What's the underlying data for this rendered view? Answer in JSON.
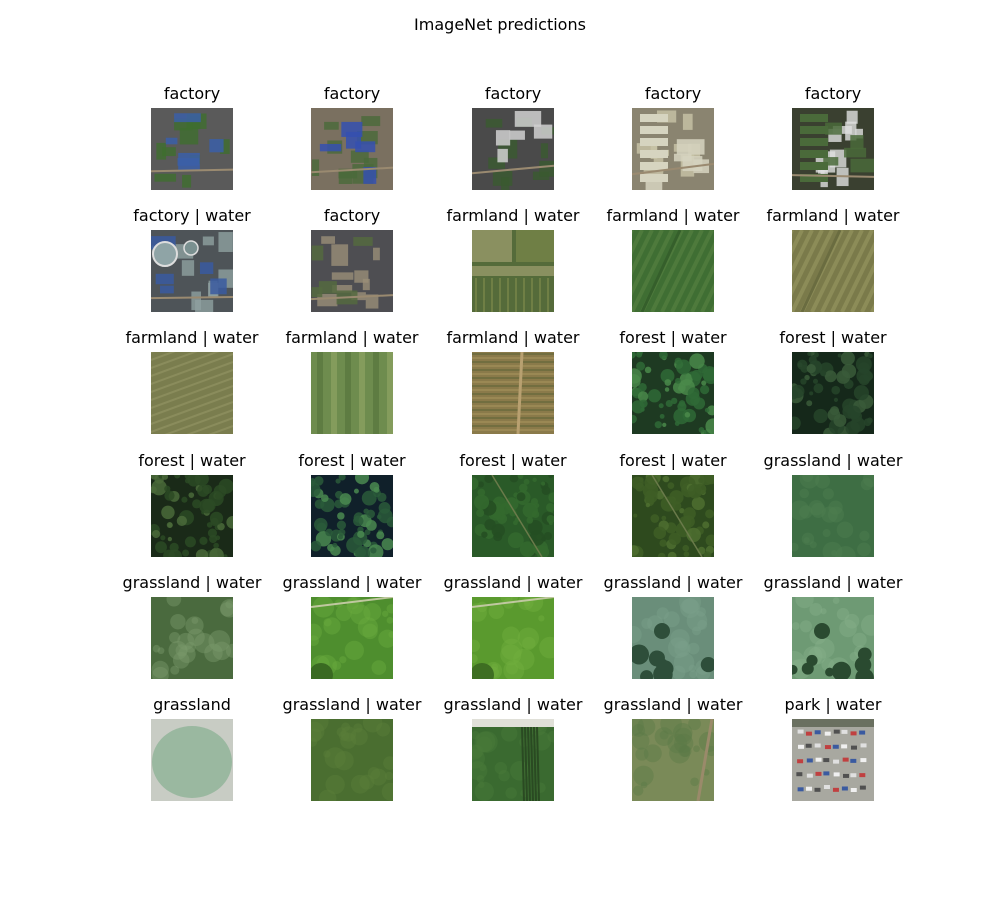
{
  "figure": {
    "title": "ImageNet predictions"
  },
  "images": [
    {
      "label": "factory",
      "kind": "factory-a",
      "colors": [
        "#5a5a5a",
        "#3e6e2e",
        "#3b5fa8"
      ]
    },
    {
      "label": "factory",
      "kind": "factory-b",
      "colors": [
        "#7a7060",
        "#4a6a3a",
        "#3550b0"
      ]
    },
    {
      "label": "factory",
      "kind": "factory-c",
      "colors": [
        "#4a4a4a",
        "#3a5a30",
        "#d0d0d0"
      ]
    },
    {
      "label": "factory",
      "kind": "factory-d",
      "colors": [
        "#8a8470",
        "#c8c4a8",
        "#d6d4c0"
      ]
    },
    {
      "label": "factory",
      "kind": "factory-e",
      "colors": [
        "#3a4030",
        "#e0e0e0",
        "#4a6a3a"
      ]
    },
    {
      "label": "factory | water",
      "kind": "factory-f",
      "colors": [
        "#4e5458",
        "#8ea0a0",
        "#3a5aa0"
      ]
    },
    {
      "label": "factory",
      "kind": "factory-g",
      "colors": [
        "#4e4e52",
        "#9a8e78",
        "#556a40"
      ]
    },
    {
      "label": "farmland | water",
      "kind": "farm-a",
      "colors": [
        "#556b3a",
        "#8a9060",
        "#6f7f45"
      ]
    },
    {
      "label": "farmland | water",
      "kind": "farm-b",
      "colors": [
        "#3f6e33",
        "#4e7a3c",
        "#355f2b"
      ]
    },
    {
      "label": "farmland | water",
      "kind": "farm-c",
      "colors": [
        "#7a7a4a",
        "#8c8c58",
        "#6a6c40"
      ]
    },
    {
      "label": "farmland | water",
      "kind": "farm-d",
      "colors": [
        "#7a7d4e",
        "#8a8c5c",
        "#6e7244"
      ]
    },
    {
      "label": "farmland | water",
      "kind": "farm-e",
      "colors": [
        "#6e8c4e",
        "#8aa060",
        "#5a7840"
      ]
    },
    {
      "label": "farmland | water",
      "kind": "farm-f",
      "colors": [
        "#8a7a4a",
        "#a08c58",
        "#6a6a3c"
      ]
    },
    {
      "label": "forest | water",
      "kind": "forest-a",
      "colors": [
        "#1e3a22",
        "#2f6a36",
        "#4a8a4a"
      ]
    },
    {
      "label": "forest | water",
      "kind": "forest-b",
      "colors": [
        "#15281a",
        "#26442a",
        "#3a5a3a"
      ]
    },
    {
      "label": "forest | water",
      "kind": "forest-c",
      "colors": [
        "#1a2a18",
        "#2c4a24",
        "#4a6a3a"
      ]
    },
    {
      "label": "forest | water",
      "kind": "forest-d",
      "colors": [
        "#10202a",
        "#2a5a3a",
        "#4a8a50"
      ]
    },
    {
      "label": "forest | water",
      "kind": "forest-e",
      "colors": [
        "#2a5a28",
        "#346a2e",
        "#244e22"
      ]
    },
    {
      "label": "forest | water",
      "kind": "forest-f",
      "colors": [
        "#2e4a1e",
        "#3e5e26",
        "#4e6e30"
      ]
    },
    {
      "label": "grassland | water",
      "kind": "grass-a",
      "colors": [
        "#3e6e44",
        "#4e7e50",
        "#6a9a6a"
      ]
    },
    {
      "label": "grassland | water",
      "kind": "grass-b",
      "colors": [
        "#4a6a3e",
        "#7a9a6a",
        "#2e4e2e"
      ]
    },
    {
      "label": "grassland | water",
      "kind": "grass-c",
      "colors": [
        "#4e8e2e",
        "#6aaa3e",
        "#3a6a22"
      ]
    },
    {
      "label": "grassland | water",
      "kind": "grass-d",
      "colors": [
        "#5a9a2e",
        "#70b03e",
        "#3e6e22"
      ]
    },
    {
      "label": "grassland | water",
      "kind": "grass-e",
      "colors": [
        "#6a8e7a",
        "#7aa08a",
        "#2e4e3a"
      ]
    },
    {
      "label": "grassland | water",
      "kind": "grass-f",
      "colors": [
        "#6e9a74",
        "#86b08a",
        "#2a4a30"
      ]
    },
    {
      "label": "grassland",
      "kind": "grass-g",
      "colors": [
        "#9ab8a0",
        "#c8ccc4",
        "#7a9a80"
      ]
    },
    {
      "label": "grassland | water",
      "kind": "grass-h",
      "colors": [
        "#4a6e30",
        "#5a7e3a",
        "#3a5a26"
      ]
    },
    {
      "label": "grassland | water",
      "kind": "grass-i",
      "colors": [
        "#3a6a30",
        "#4a7a3a",
        "#e0e0d8"
      ]
    },
    {
      "label": "grassland | water",
      "kind": "grass-j",
      "colors": [
        "#7a8a58",
        "#5a7a48",
        "#9a8a6a"
      ]
    },
    {
      "label": "park | water",
      "kind": "park-a",
      "colors": [
        "#a8a8a0",
        "#6a7060",
        "#c04040"
      ]
    }
  ]
}
